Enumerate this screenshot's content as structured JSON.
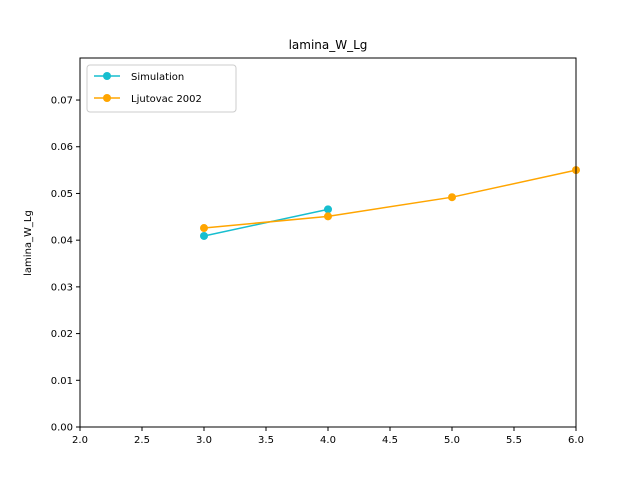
{
  "chart_data": {
    "type": "line",
    "title": "lamina_W_Lg",
    "xlabel": "",
    "ylabel": "lamina_W_Lg",
    "xlim": [
      2.0,
      6.0
    ],
    "ylim": [
      0.0,
      0.079
    ],
    "x_ticks": [
      "2.0",
      "2.5",
      "3.0",
      "3.5",
      "4.0",
      "4.5",
      "5.0",
      "5.5",
      "6.0"
    ],
    "y_ticks": [
      "0.00",
      "0.01",
      "0.02",
      "0.03",
      "0.04",
      "0.05",
      "0.06",
      "0.07"
    ],
    "grid": false,
    "legend_position": "top-left",
    "series": [
      {
        "name": "Simulation",
        "color": "#17becf",
        "marker": "circle",
        "points": [
          [
            3.0,
            0.0409
          ],
          [
            4.0,
            0.0466
          ]
        ]
      },
      {
        "name": "Ljutovac 2002",
        "color": "#ffa500",
        "marker": "circle",
        "points": [
          [
            3.0,
            0.0426
          ],
          [
            4.0,
            0.0451
          ],
          [
            5.0,
            0.0492
          ],
          [
            6.0,
            0.055
          ]
        ]
      }
    ]
  }
}
